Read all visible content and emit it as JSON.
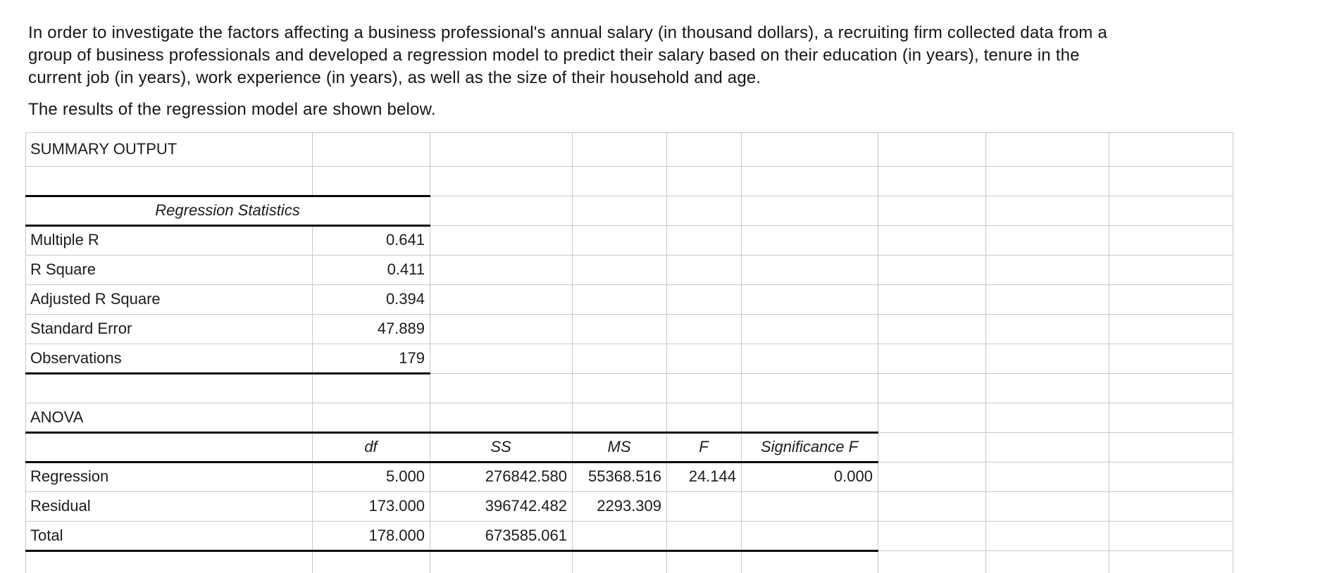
{
  "intro": {
    "paragraph_lines": [
      "In order to investigate the factors affecting a business professional's annual salary (in thousand dollars), a recruiting firm collected data from a",
      "group of business professionals and developed a regression model to predict their salary based on their education (in years), tenure in the",
      "current job (in years), work experience (in years), as well as the size of their household and age."
    ],
    "results_line": "The results of the regression model are shown below."
  },
  "spreadsheet": {
    "summary_title": "SUMMARY OUTPUT",
    "regression_statistics": {
      "title": "Regression Statistics",
      "rows": [
        {
          "label": "Multiple R",
          "value": "0.641"
        },
        {
          "label": "R Square",
          "value": "0.411"
        },
        {
          "label": "Adjusted R Square",
          "value": "0.394"
        },
        {
          "label": "Standard Error",
          "value": "47.889"
        },
        {
          "label": "Observations",
          "value": "179"
        }
      ]
    },
    "anova": {
      "title": "ANOVA",
      "headers": {
        "df": "df",
        "ss": "SS",
        "ms": "MS",
        "f": "F",
        "sig_f": "Significance F"
      },
      "rows": [
        {
          "label": "Regression",
          "df": "5.000",
          "ss": "276842.580",
          "ms": "55368.516",
          "f": "24.144",
          "sig_f": "0.000"
        },
        {
          "label": "Residual",
          "df": "173.000",
          "ss": "396742.482",
          "ms": "2293.309",
          "f": "",
          "sig_f": ""
        },
        {
          "label": "Total",
          "df": "178.000",
          "ss": "673585.061",
          "ms": "",
          "f": "",
          "sig_f": ""
        }
      ]
    }
  },
  "colors": {
    "gridline": "#c8c8c8",
    "border": "#0a0a0a",
    "text": "#1c1c1c"
  }
}
